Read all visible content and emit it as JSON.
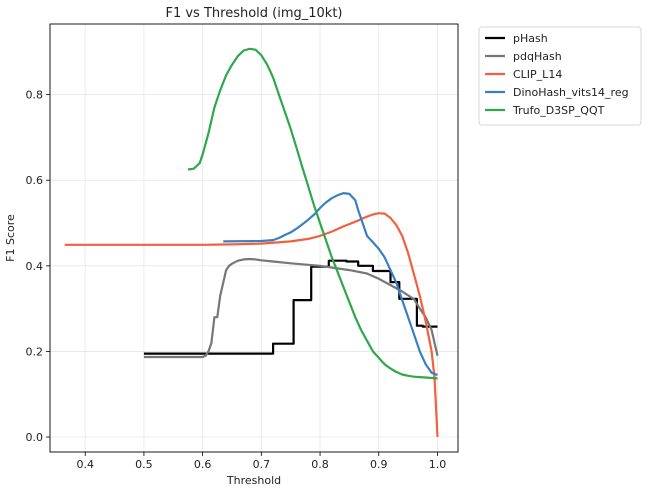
{
  "chart_data": {
    "type": "line",
    "title": "F1 vs Threshold (img_10kt)",
    "xlabel": "Threshold",
    "ylabel": "F1 Score",
    "xlim": [
      0.34,
      1.035
    ],
    "ylim": [
      -0.035,
      0.965
    ],
    "xticks": [
      0.4,
      0.5,
      0.6,
      0.7,
      0.8,
      0.9,
      1.0
    ],
    "xtick_labels": [
      "0.4",
      "0.5",
      "0.6",
      "0.7",
      "0.8",
      "0.9",
      "1.0"
    ],
    "yticks": [
      0.0,
      0.2,
      0.4,
      0.6,
      0.8
    ],
    "ytick_labels": [
      "0.0",
      "0.2",
      "0.4",
      "0.6",
      "0.8"
    ],
    "grid": true,
    "legend_position": "outside-upper-right",
    "series": [
      {
        "name": "pHash",
        "color": "#000000",
        "x": [
          0.5,
          0.72,
          0.72,
          0.745,
          0.745,
          0.755,
          0.755,
          0.785,
          0.785,
          0.815,
          0.815,
          0.845,
          0.845,
          0.865,
          0.865,
          0.89,
          0.89,
          0.92,
          0.92,
          0.935,
          0.935,
          0.965,
          0.965,
          0.975,
          0.975,
          1.0
        ],
        "y": [
          0.195,
          0.195,
          0.218,
          0.218,
          0.218,
          0.218,
          0.32,
          0.32,
          0.398,
          0.398,
          0.412,
          0.412,
          0.41,
          0.41,
          0.4,
          0.4,
          0.388,
          0.388,
          0.362,
          0.362,
          0.323,
          0.323,
          0.26,
          0.26,
          0.258,
          0.258
        ]
      },
      {
        "name": "pdqHash",
        "color": "#777777",
        "x": [
          0.5,
          0.6,
          0.605,
          0.61,
          0.615,
          0.62,
          0.625,
          0.63,
          0.635,
          0.64,
          0.645,
          0.65,
          0.66,
          0.67,
          0.68,
          0.69,
          0.7,
          0.72,
          0.75,
          0.8,
          0.85,
          0.88,
          0.9,
          0.92,
          0.94,
          0.96,
          0.97,
          0.98,
          0.99,
          1.0
        ],
        "y": [
          0.187,
          0.187,
          0.19,
          0.2,
          0.22,
          0.28,
          0.28,
          0.33,
          0.36,
          0.39,
          0.4,
          0.405,
          0.412,
          0.415,
          0.416,
          0.415,
          0.413,
          0.41,
          0.406,
          0.4,
          0.39,
          0.382,
          0.37,
          0.355,
          0.34,
          0.322,
          0.3,
          0.28,
          0.25,
          0.19
        ]
      },
      {
        "name": "CLIP_L14",
        "color": "#f2613f",
        "x": [
          0.365,
          0.5,
          0.6,
          0.65,
          0.7,
          0.75,
          0.78,
          0.8,
          0.82,
          0.84,
          0.86,
          0.88,
          0.89,
          0.9,
          0.91,
          0.92,
          0.93,
          0.94,
          0.95,
          0.96,
          0.97,
          0.98,
          0.99,
          0.995,
          1.0
        ],
        "y": [
          0.449,
          0.449,
          0.449,
          0.45,
          0.452,
          0.457,
          0.463,
          0.47,
          0.48,
          0.492,
          0.503,
          0.515,
          0.52,
          0.523,
          0.522,
          0.512,
          0.495,
          0.47,
          0.43,
          0.38,
          0.33,
          0.27,
          0.2,
          0.14,
          0.0
        ]
      },
      {
        "name": "DinoHash_vits14_reg",
        "color": "#3a7fc0",
        "x": [
          0.635,
          0.7,
          0.72,
          0.73,
          0.74,
          0.75,
          0.76,
          0.77,
          0.78,
          0.79,
          0.8,
          0.81,
          0.82,
          0.83,
          0.84,
          0.85,
          0.86,
          0.865,
          0.87,
          0.875,
          0.88,
          0.89,
          0.9,
          0.91,
          0.92,
          0.93,
          0.94,
          0.95,
          0.96,
          0.97,
          0.98,
          0.99,
          1.0
        ],
        "y": [
          0.457,
          0.458,
          0.46,
          0.465,
          0.472,
          0.478,
          0.487,
          0.497,
          0.508,
          0.52,
          0.535,
          0.548,
          0.558,
          0.565,
          0.57,
          0.568,
          0.553,
          0.53,
          0.51,
          0.49,
          0.47,
          0.455,
          0.44,
          0.42,
          0.39,
          0.36,
          0.32,
          0.28,
          0.24,
          0.2,
          0.17,
          0.15,
          0.145
        ]
      },
      {
        "name": "Trufo_D3SP_QQT",
        "color": "#2ea84a",
        "x": [
          0.575,
          0.585,
          0.595,
          0.6,
          0.61,
          0.62,
          0.63,
          0.64,
          0.65,
          0.66,
          0.67,
          0.68,
          0.69,
          0.7,
          0.71,
          0.72,
          0.73,
          0.74,
          0.75,
          0.76,
          0.77,
          0.78,
          0.79,
          0.8,
          0.81,
          0.82,
          0.83,
          0.84,
          0.85,
          0.86,
          0.87,
          0.88,
          0.89,
          0.9,
          0.91,
          0.92,
          0.93,
          0.94,
          0.95,
          0.96,
          0.97,
          0.98,
          0.99,
          1.0
        ],
        "y": [
          0.625,
          0.627,
          0.64,
          0.66,
          0.71,
          0.77,
          0.81,
          0.845,
          0.87,
          0.89,
          0.903,
          0.907,
          0.905,
          0.892,
          0.87,
          0.84,
          0.8,
          0.76,
          0.72,
          0.675,
          0.63,
          0.585,
          0.54,
          0.5,
          0.46,
          0.42,
          0.385,
          0.35,
          0.315,
          0.28,
          0.25,
          0.225,
          0.2,
          0.185,
          0.17,
          0.16,
          0.152,
          0.146,
          0.143,
          0.141,
          0.14,
          0.139,
          0.138,
          0.137
        ]
      }
    ]
  }
}
